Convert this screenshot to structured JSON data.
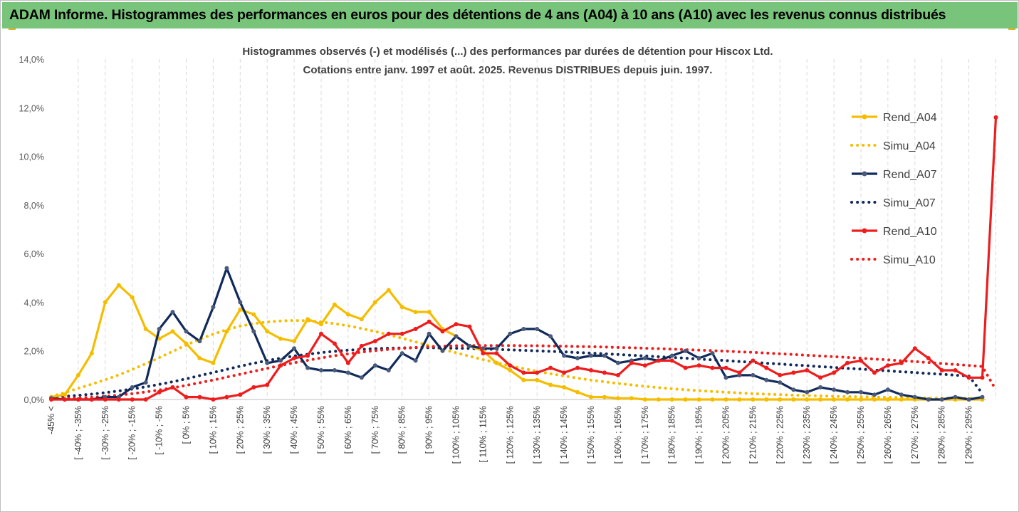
{
  "banner": {
    "title": "ADAM Informe. Histogrammes des performances en euros pour des détentions de 4 ans (A04) à 10 ans (A10) avec les revenus connus distribués",
    "background": "#77c47a"
  },
  "chart_data": {
    "type": "line",
    "title_lines": [
      "Histogrammes observés (-) et modélisés (...) des performances par durées de détention pour Hiscox Ltd.",
      "Cotations entre janv. 1997 et août. 2025. Revenus DISTRIBUES depuis juin. 1997."
    ],
    "ylim": [
      0,
      14
    ],
    "yticks": [
      "0,0%",
      "2,0%",
      "4,0%",
      "6,0%",
      "8,0%",
      "10,0%",
      "12,0%",
      "14,0%"
    ],
    "grid": "vertical dashed",
    "legend_position": "right",
    "x_labels": [
      "-45% <",
      "[ -40% ; -35%",
      "[ -30% ; -25%",
      "[ -20% ; -15%",
      "[ -10% ; -5%",
      "[ 0% ; 5%",
      "[ 10% ; 15%",
      "[ 20% ; 25%",
      "[ 30% ; 35%",
      "[ 40% ; 45%",
      "[ 50% ; 55%",
      "[ 60% ; 65%",
      "[ 70% ; 75%",
      "[ 80% ; 85%",
      "[ 90% ; 95%",
      "[ 100% ; 105%",
      "[ 110% ; 115%",
      "[ 120% ; 125%",
      "[ 130% ; 135%",
      "[ 140% ; 145%",
      "[ 150% ; 155%",
      "[ 160% ; 165%",
      "[ 170% ; 175%",
      "[ 180% ; 185%",
      "[ 190% ; 195%",
      "[ 200% ; 205%",
      "[ 210% ; 215%",
      "[ 220% ; 225%",
      "[ 230% ; 235%",
      "[ 240% ; 245%",
      "[ 250% ; 255%",
      "[ 260% ; 265%",
      "[ 270% ; 275%",
      "[ 280% ; 285%",
      "[ 290% ; 295%"
    ],
    "series": [
      {
        "name": "Rend_A04",
        "style": "solid",
        "color": "#f5bd00",
        "values": [
          0.1,
          0.2,
          1.0,
          1.9,
          4.0,
          4.7,
          4.2,
          2.9,
          2.5,
          2.8,
          2.3,
          1.7,
          1.5,
          2.8,
          3.7,
          3.5,
          2.8,
          2.5,
          2.4,
          3.3,
          3.1,
          3.9,
          3.5,
          3.3,
          4.0,
          4.5,
          3.8,
          3.6,
          3.6,
          2.9,
          2.6,
          2.2,
          2.0,
          1.5,
          1.2,
          0.8,
          0.8,
          0.6,
          0.5,
          0.3,
          0.1,
          0.1,
          0.05,
          0.05,
          0,
          0,
          0,
          0,
          0,
          0,
          0,
          0,
          0,
          0,
          0,
          0,
          0,
          0,
          0,
          0,
          0,
          0,
          0,
          0,
          0,
          0,
          0,
          0,
          0,
          0
        ]
      },
      {
        "name": "Simu_A04",
        "style": "dotted",
        "color": "#f5bd00",
        "values": [
          0.13,
          0.28,
          0.46,
          0.63,
          0.81,
          1.01,
          1.23,
          1.47,
          1.72,
          1.98,
          2.24,
          2.48,
          2.69,
          2.87,
          3.02,
          3.12,
          3.19,
          3.23,
          3.25,
          3.24,
          3.19,
          3.12,
          3.03,
          2.92,
          2.8,
          2.66,
          2.52,
          2.37,
          2.22,
          2.07,
          1.92,
          1.78,
          1.64,
          1.51,
          1.39,
          1.27,
          1.16,
          1.06,
          0.97,
          0.88,
          0.8,
          0.73,
          0.66,
          0.6,
          0.54,
          0.49,
          0.44,
          0.4,
          0.36,
          0.33,
          0.3,
          0.27,
          0.24,
          0.22,
          0.2,
          0.18,
          0.16,
          0.15,
          0.13,
          0.12,
          0.11,
          0.1,
          0.09,
          0.08,
          0.07,
          0.06,
          0.06,
          0.05,
          0.05,
          0.04
        ]
      },
      {
        "name": "Rend_A07",
        "style": "solid",
        "color": "#112a5c",
        "values": [
          0.05,
          0,
          0,
          0,
          0.1,
          0.1,
          0.5,
          0.7,
          2.9,
          3.6,
          2.8,
          2.4,
          3.8,
          5.4,
          4.0,
          2.8,
          1.5,
          1.6,
          2.1,
          1.3,
          1.2,
          1.2,
          1.1,
          0.9,
          1.4,
          1.2,
          1.9,
          1.6,
          2.7,
          2.0,
          2.6,
          2.2,
          2.1,
          2.1,
          2.7,
          2.9,
          2.9,
          2.6,
          1.8,
          1.7,
          1.8,
          1.8,
          1.5,
          1.6,
          1.7,
          1.6,
          1.8,
          2.0,
          1.7,
          1.9,
          0.9,
          1.0,
          1.0,
          0.8,
          0.7,
          0.4,
          0.3,
          0.5,
          0.4,
          0.3,
          0.3,
          0.2,
          0.4,
          0.2,
          0.1,
          0,
          0,
          0.1,
          0,
          0.1
        ]
      },
      {
        "name": "Simu_A07",
        "style": "dotted",
        "color": "#112a5c",
        "values": [
          0.1,
          0.13,
          0.17,
          0.22,
          0.28,
          0.35,
          0.43,
          0.52,
          0.62,
          0.73,
          0.85,
          0.98,
          1.11,
          1.24,
          1.37,
          1.49,
          1.6,
          1.7,
          1.79,
          1.86,
          1.93,
          1.98,
          2.03,
          2.06,
          2.09,
          2.11,
          2.12,
          2.13,
          2.13,
          2.12,
          2.11,
          2.1,
          2.08,
          2.06,
          2.04,
          2.02,
          2.0,
          1.98,
          1.96,
          1.93,
          1.91,
          1.88,
          1.85,
          1.82,
          1.79,
          1.76,
          1.73,
          1.7,
          1.66,
          1.63,
          1.6,
          1.56,
          1.53,
          1.49,
          1.46,
          1.42,
          1.39,
          1.35,
          1.32,
          1.28,
          1.25,
          1.21,
          1.18,
          1.14,
          1.11,
          1.07,
          1.04,
          1.0,
          0.97,
          0.25
        ]
      },
      {
        "name": "Rend_A10",
        "style": "solid",
        "color": "#ee1c1c",
        "values": [
          0,
          0,
          0,
          0,
          0,
          0,
          0,
          0,
          0.3,
          0.5,
          0.1,
          0.1,
          0,
          0.1,
          0.2,
          0.5,
          0.6,
          1.4,
          1.7,
          1.8,
          2.7,
          2.3,
          1.5,
          2.2,
          2.4,
          2.7,
          2.7,
          2.9,
          3.2,
          2.8,
          3.1,
          3.0,
          1.9,
          1.9,
          1.4,
          1.1,
          1.1,
          1.3,
          1.1,
          1.3,
          1.2,
          1.1,
          1.0,
          1.5,
          1.4,
          1.6,
          1.6,
          1.3,
          1.4,
          1.3,
          1.3,
          1.1,
          1.6,
          1.3,
          1.0,
          1.1,
          1.2,
          0.9,
          1.1,
          1.5,
          1.6,
          1.1,
          1.4,
          1.5,
          2.1,
          1.7,
          1.2,
          1.2,
          0.9,
          0.9,
          11.6
        ]
      },
      {
        "name": "Simu_A10",
        "style": "dotted",
        "color": "#ee1c1c",
        "values": [
          0.02,
          0.04,
          0.06,
          0.09,
          0.13,
          0.18,
          0.24,
          0.31,
          0.39,
          0.48,
          0.58,
          0.69,
          0.8,
          0.92,
          1.04,
          1.16,
          1.28,
          1.4,
          1.51,
          1.61,
          1.71,
          1.8,
          1.88,
          1.95,
          2.01,
          2.06,
          2.1,
          2.14,
          2.17,
          2.19,
          2.21,
          2.22,
          2.22,
          2.22,
          2.22,
          2.21,
          2.21,
          2.2,
          2.19,
          2.18,
          2.17,
          2.16,
          2.14,
          2.13,
          2.11,
          2.09,
          2.07,
          2.05,
          2.03,
          2.01,
          1.99,
          1.96,
          1.94,
          1.91,
          1.88,
          1.85,
          1.82,
          1.79,
          1.76,
          1.73,
          1.7,
          1.66,
          1.63,
          1.59,
          1.56,
          1.52,
          1.48,
          1.44,
          1.4,
          1.36,
          0.4
        ]
      }
    ]
  }
}
